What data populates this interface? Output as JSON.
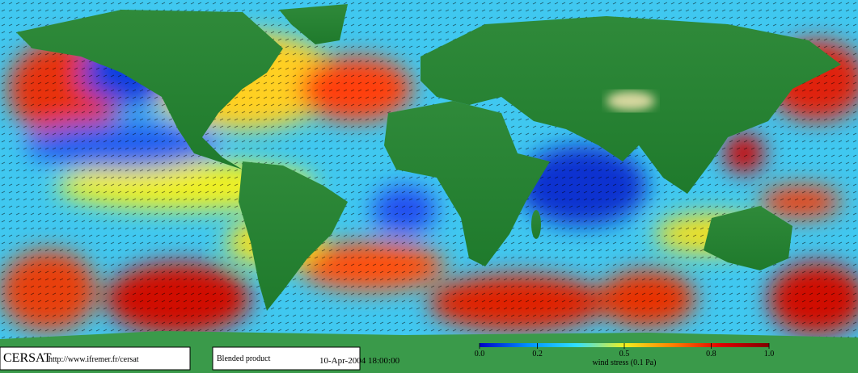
{
  "footer": {
    "logo": "CERSAT",
    "url": "http://www.ifremer.fr/cersat",
    "product": "Blended product",
    "date": "10-Apr-2004 18:00:00"
  },
  "colorbar": {
    "label": "wind stress (0.1 Pa)",
    "lim": [
      0,
      1
    ],
    "ticks": [
      {
        "value": 0,
        "label": "0.0"
      },
      0.2,
      0.5,
      0.8,
      {
        "value": 1,
        "label": "1.0"
      }
    ],
    "colors": [
      "#0000c8",
      "#0090ff",
      "#30e0ff",
      "#f0f020",
      "#ff8000",
      "#e00000",
      "#800000"
    ]
  }
}
